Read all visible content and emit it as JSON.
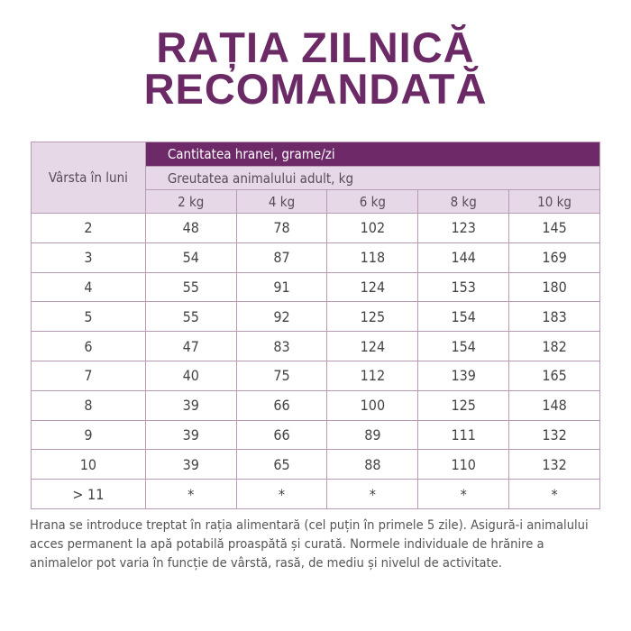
{
  "title": {
    "line1": "RAȚIA ZILNICĂ",
    "line2": "RECOMANDATĂ"
  },
  "table": {
    "age_header": "Vârsta în luni",
    "quantity_header": "Cantitatea hranei, grame/zi",
    "weight_header": "Greutatea animalului adult, kg",
    "weights": [
      "2 kg",
      "4 kg",
      "6 kg",
      "8 kg",
      "10 kg"
    ],
    "rows": [
      {
        "age": "2",
        "values": [
          "48",
          "78",
          "102",
          "123",
          "145"
        ]
      },
      {
        "age": "3",
        "values": [
          "54",
          "87",
          "118",
          "144",
          "169"
        ]
      },
      {
        "age": "4",
        "values": [
          "55",
          "91",
          "124",
          "153",
          "180"
        ]
      },
      {
        "age": "5",
        "values": [
          "55",
          "92",
          "125",
          "154",
          "183"
        ]
      },
      {
        "age": "6",
        "values": [
          "47",
          "83",
          "124",
          "154",
          "182"
        ]
      },
      {
        "age": "7",
        "values": [
          "40",
          "75",
          "112",
          "139",
          "165"
        ]
      },
      {
        "age": "8",
        "values": [
          "39",
          "66",
          "100",
          "125",
          "148"
        ]
      },
      {
        "age": "9",
        "values": [
          "39",
          "66",
          "89",
          "111",
          "132"
        ]
      },
      {
        "age": "10",
        "values": [
          "39",
          "65",
          "88",
          "110",
          "132"
        ]
      },
      {
        "age": "> 11",
        "values": [
          "*",
          "*",
          "*",
          "*",
          "*"
        ]
      }
    ]
  },
  "note": "Hrana se introduce treptat în rația alimentară (cel puțin în primele 5 zile). Asigură-i animalului acces permanent la apă potabilă proaspătă și curată. Normele individuale de hrănire a animalelor pot varia în funcție de vârstă, rasă, de mediu și nivelul de activitate.",
  "colors": {
    "brand_purple": "#6e2a68",
    "header_light": "#e6d8e6"
  }
}
